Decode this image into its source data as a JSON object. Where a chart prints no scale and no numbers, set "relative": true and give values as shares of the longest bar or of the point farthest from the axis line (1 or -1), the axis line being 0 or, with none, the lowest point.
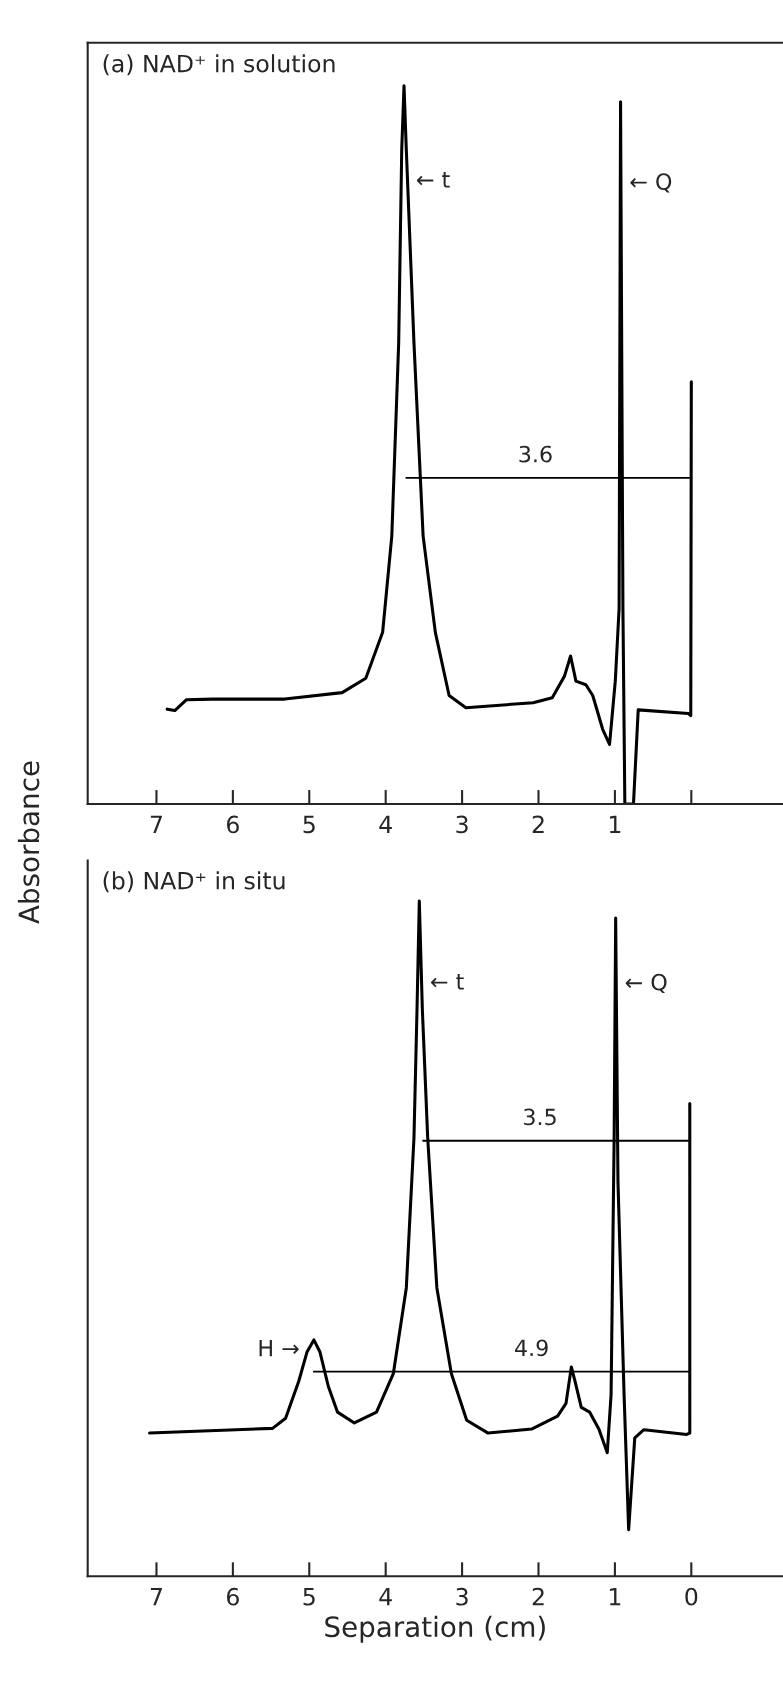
{
  "chart_data": [
    {
      "type": "line",
      "title": "(a) NAD⁺ in solution",
      "ylabel": "Absorbance",
      "relative": true,
      "tick_labels": "x",
      "xlim": [
        7.9,
        -1.2
      ],
      "xticks": [
        7,
        6,
        5,
        4,
        3,
        2,
        1,
        {
          "value": 0,
          "label": null
        }
      ],
      "series": [
        {
          "color": "#000000",
          "x": [
            6.86,
            6.76,
            6.61,
            6.26,
            5.32,
            4.57,
            4.26,
            4.04,
            3.92,
            3.83,
            3.79,
            3.76,
            3.73,
            3.63,
            3.51,
            3.35,
            3.17,
            2.95,
            2.07,
            1.82,
            1.66,
            1.58,
            1.51,
            1.38,
            1.29,
            1.16,
            1.07,
            0.995,
            0.945,
            0.926,
            0.895,
            0.87,
            0.757,
            0.695,
            0.04,
            0.007,
            0.0
          ],
          "values": [
            0.132,
            0.13,
            0.145,
            0.146,
            0.146,
            0.155,
            0.175,
            0.239,
            0.373,
            0.642,
            0.911,
            1.0,
            0.911,
            0.642,
            0.373,
            0.239,
            0.151,
            0.134,
            0.141,
            0.148,
            0.178,
            0.206,
            0.171,
            0.166,
            0.151,
            0.104,
            0.083,
            0.171,
            0.272,
            0.978,
            0.272,
            0.0,
            0.0,
            0.131,
            0.126,
            0.123,
            0.588
          ]
        },
        {
          "color": "#000000",
          "type": "line",
          "x": [
            3.73,
            0.0
          ],
          "values": [
            0.454,
            0.454
          ]
        }
      ],
      "annotations": [
        {
          "text": "3.6",
          "x": 2.04,
          "y": 0.454
        },
        {
          "text": "← t",
          "x": 3.714,
          "y": 0.867
        },
        {
          "text": "← Q",
          "x": 0.921,
          "y": 0.864
        }
      ]
    },
    {
      "type": "line",
      "title": "(b) NAD⁺ in situ",
      "xlabel": "Separation (cm)",
      "relative": true,
      "tick_labels": "x",
      "xlim": [
        7.9,
        -1.2
      ],
      "xticks": [
        7,
        6,
        5,
        4,
        3,
        2,
        1,
        0
      ],
      "series": [
        {
          "color": "#000000",
          "x": [
            7.09,
            5.48,
            5.31,
            5.14,
            5.03,
            4.94,
            4.86,
            4.75,
            4.63,
            4.41,
            4.12,
            3.9,
            3.73,
            3.63,
            3.59,
            3.56,
            3.52,
            3.45,
            3.33,
            3.14,
            2.94,
            2.66,
            2.09,
            1.75,
            1.64,
            1.57,
            1.52,
            1.44,
            1.33,
            1.21,
            1.1,
            1.05,
            1.01,
            0.99,
            0.96,
            0.88,
            0.82,
            0.74,
            0.62,
            0.06,
            0.02,
            0.02
          ],
          "values": [
            0.212,
            0.219,
            0.234,
            0.288,
            0.332,
            0.35,
            0.332,
            0.281,
            0.243,
            0.227,
            0.243,
            0.3,
            0.427,
            0.649,
            0.839,
            1.0,
            0.839,
            0.649,
            0.427,
            0.3,
            0.231,
            0.212,
            0.218,
            0.237,
            0.256,
            0.31,
            0.288,
            0.25,
            0.243,
            0.218,
            0.183,
            0.269,
            0.649,
            0.975,
            0.585,
            0.269,
            0.069,
            0.205,
            0.217,
            0.21,
            0.212,
            0.7
          ]
        },
        {
          "color": "#000000",
          "type": "line",
          "x": [
            3.51,
            0.02
          ],
          "values": [
            0.645,
            0.645
          ]
        },
        {
          "color": "#000000",
          "type": "line",
          "x": [
            4.94,
            0.02
          ],
          "values": [
            0.303,
            0.303
          ]
        }
      ],
      "annotations": [
        {
          "text": "3.5",
          "x": 1.98,
          "y": 0.645
        },
        {
          "text": "4.9",
          "x": 2.09,
          "y": 0.303
        },
        {
          "text": "← t",
          "x": 3.53,
          "y": 0.878
        },
        {
          "text": "← Q",
          "x": 0.982,
          "y": 0.877
        },
        {
          "text": "H →",
          "x": 5.015,
          "y": 0.335
        }
      ]
    }
  ]
}
